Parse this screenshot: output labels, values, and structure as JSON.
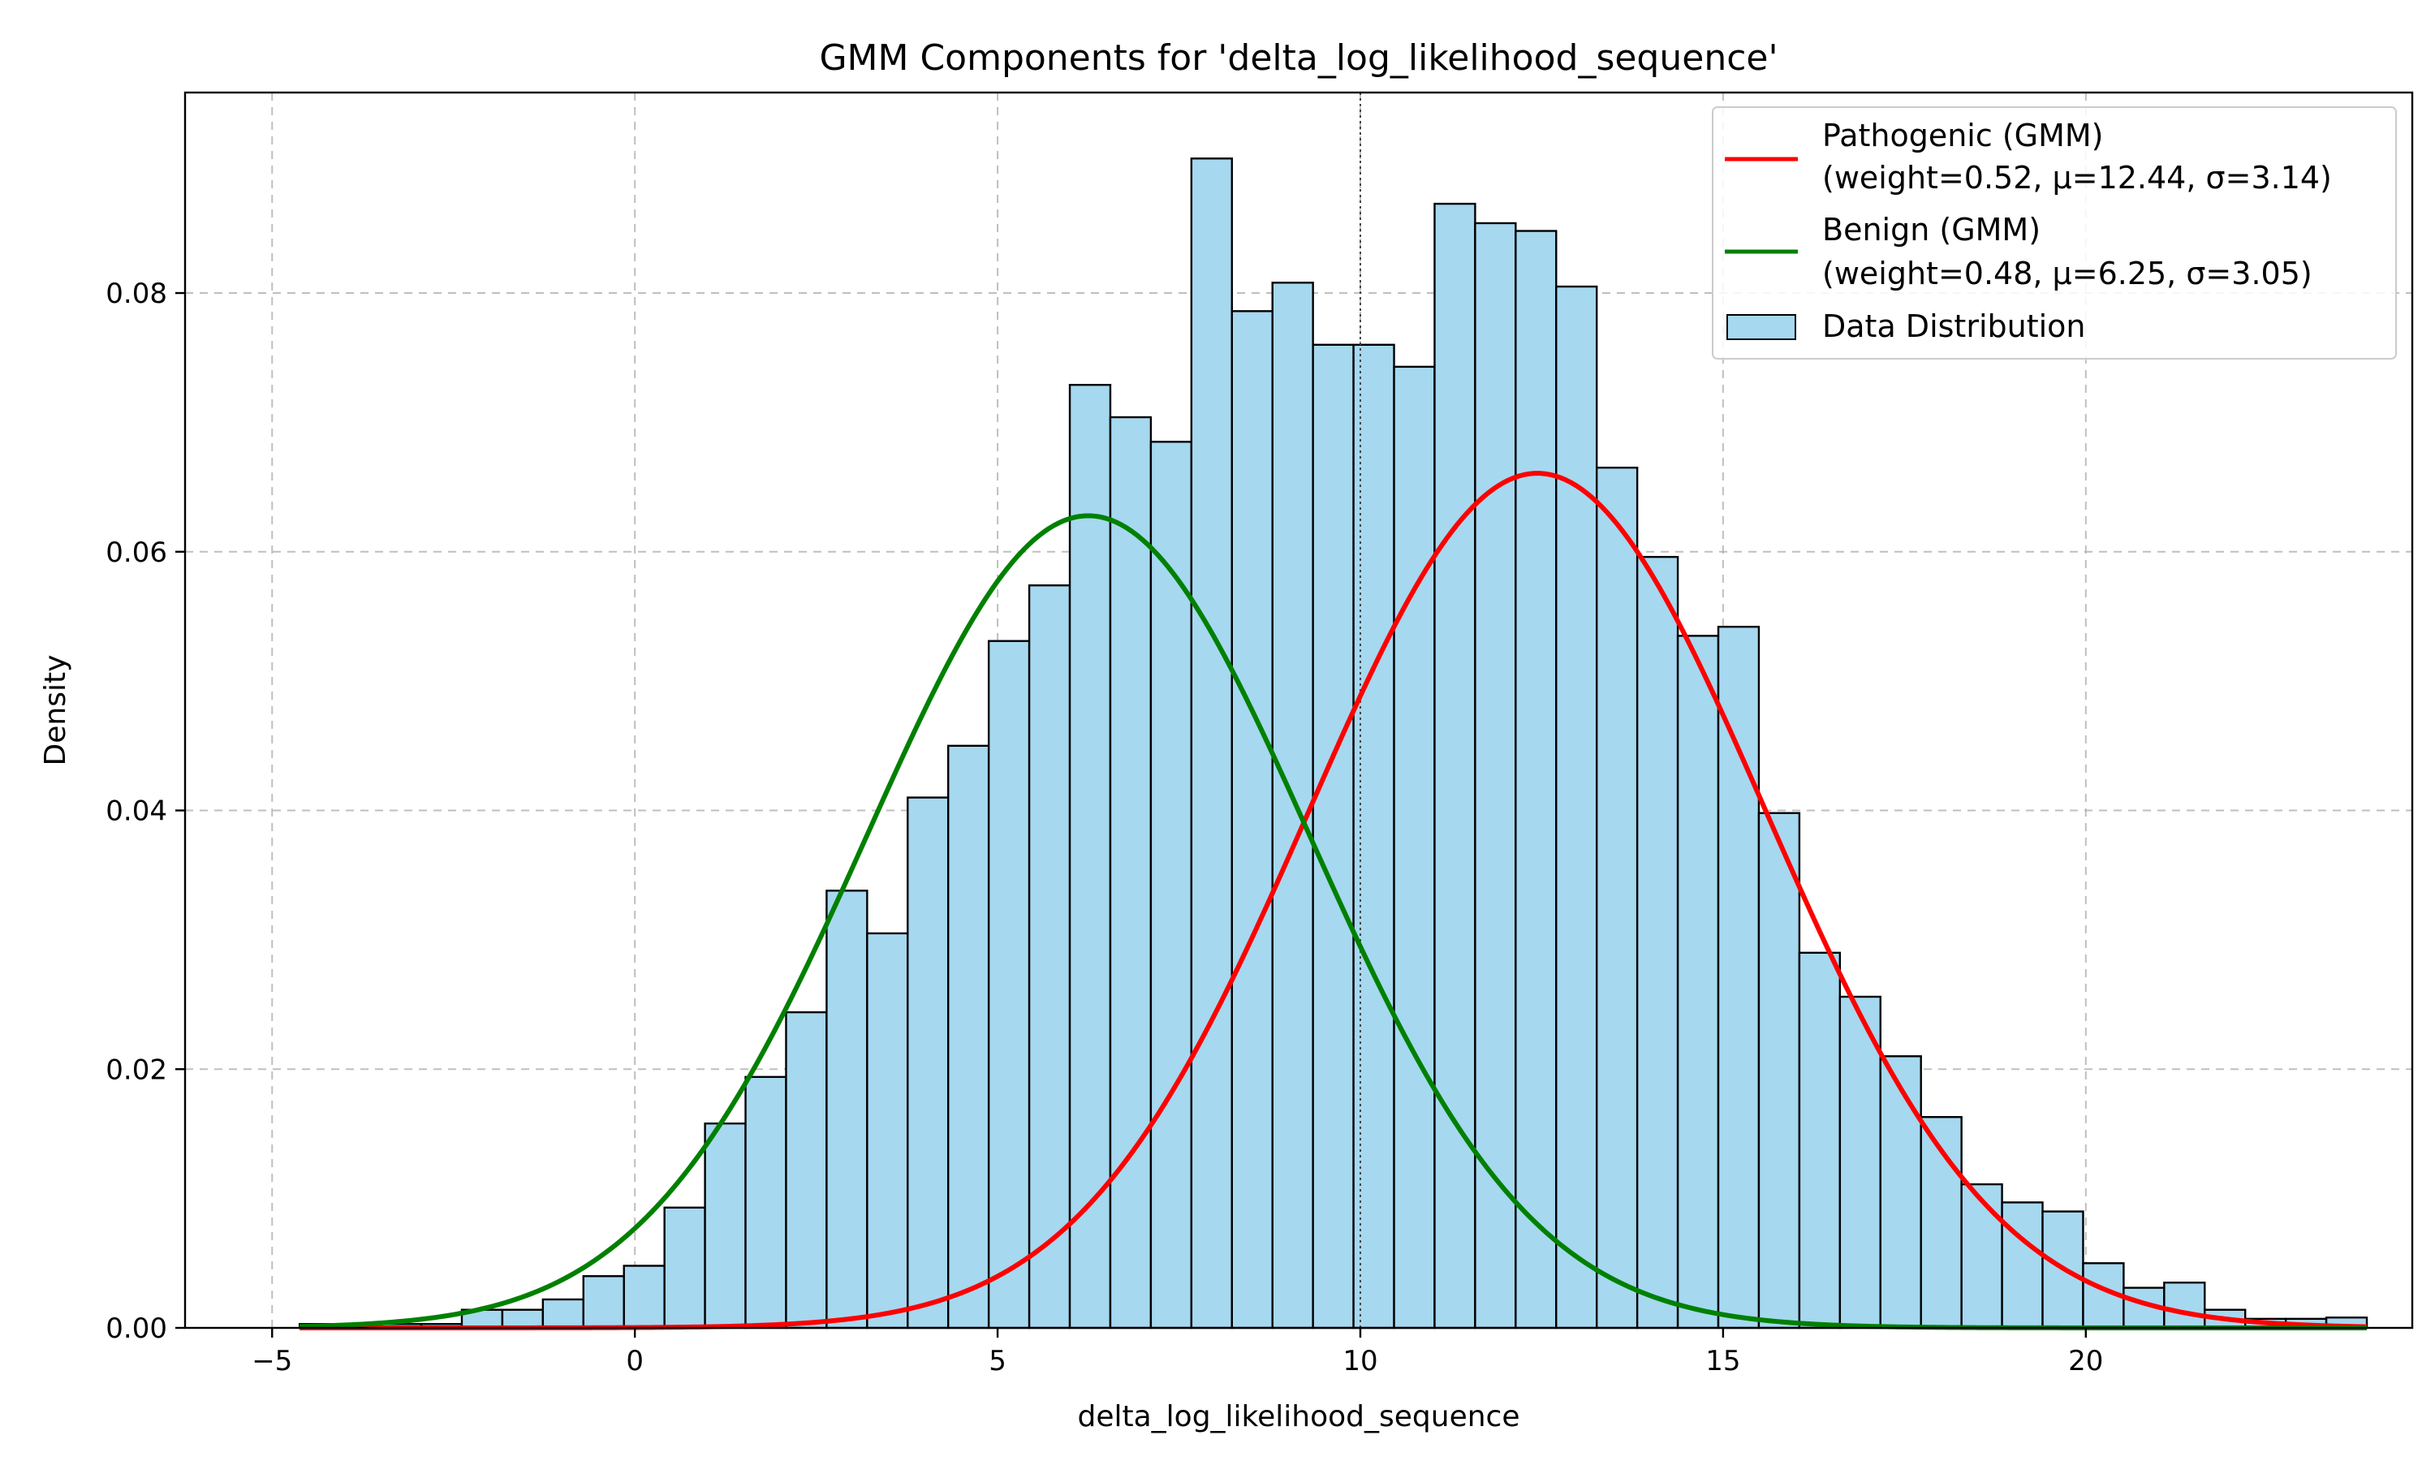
{
  "chart_data": {
    "type": "bar",
    "title": "GMM Components for 'delta_log_likelihood_sequence'",
    "xlabel": "delta_log_likelihood_sequence",
    "ylabel": "Density",
    "xlim": [
      -6.2,
      24.5
    ],
    "ylim": [
      0,
      0.0955
    ],
    "x_ticks": [
      -5,
      0,
      5,
      10,
      15,
      20
    ],
    "x_tick_labels": [
      "−5",
      "0",
      "5",
      "10",
      "15",
      "20"
    ],
    "y_ticks": [
      0,
      0.02,
      0.04,
      0.06,
      0.08
    ],
    "y_tick_labels": [
      "0.00",
      "0.02",
      "0.04",
      "0.06",
      "0.08"
    ],
    "grid": true,
    "reference_line_x": 10,
    "legend_position": "top-right",
    "histogram": {
      "name": "Data Distribution",
      "color": "#a6d8f0",
      "edge_color": "#000000",
      "bin_start": -4.62,
      "bin_width": 0.5587,
      "values": [
        0.0003,
        0.0003,
        0.0003,
        0.0003,
        0.0014,
        0.0014,
        0.0022,
        0.004,
        0.0048,
        0.0093,
        0.0158,
        0.0194,
        0.0244,
        0.0338,
        0.0305,
        0.041,
        0.045,
        0.0531,
        0.0574,
        0.0729,
        0.0704,
        0.0685,
        0.0904,
        0.0786,
        0.0808,
        0.076,
        0.076,
        0.0743,
        0.0869,
        0.0854,
        0.0848,
        0.0805,
        0.0665,
        0.0596,
        0.0535,
        0.0542,
        0.0398,
        0.029,
        0.0256,
        0.021,
        0.0163,
        0.0111,
        0.0097,
        0.009,
        0.005,
        0.0031,
        0.0035,
        0.0014,
        0.0007,
        0.0007,
        0.0008
      ]
    },
    "series": [
      {
        "name": "Pathogenic (GMM)",
        "name_detail": "(weight=0.52, μ=12.44, σ=3.14)",
        "color": "#ff0000",
        "weight": 0.52,
        "mu": 12.44,
        "sigma": 3.14
      },
      {
        "name": "Benign (GMM)",
        "name_detail": "(weight=0.48, μ=6.25, σ=3.05)",
        "color": "#008000",
        "weight": 0.48,
        "mu": 6.25,
        "sigma": 3.05
      }
    ]
  }
}
